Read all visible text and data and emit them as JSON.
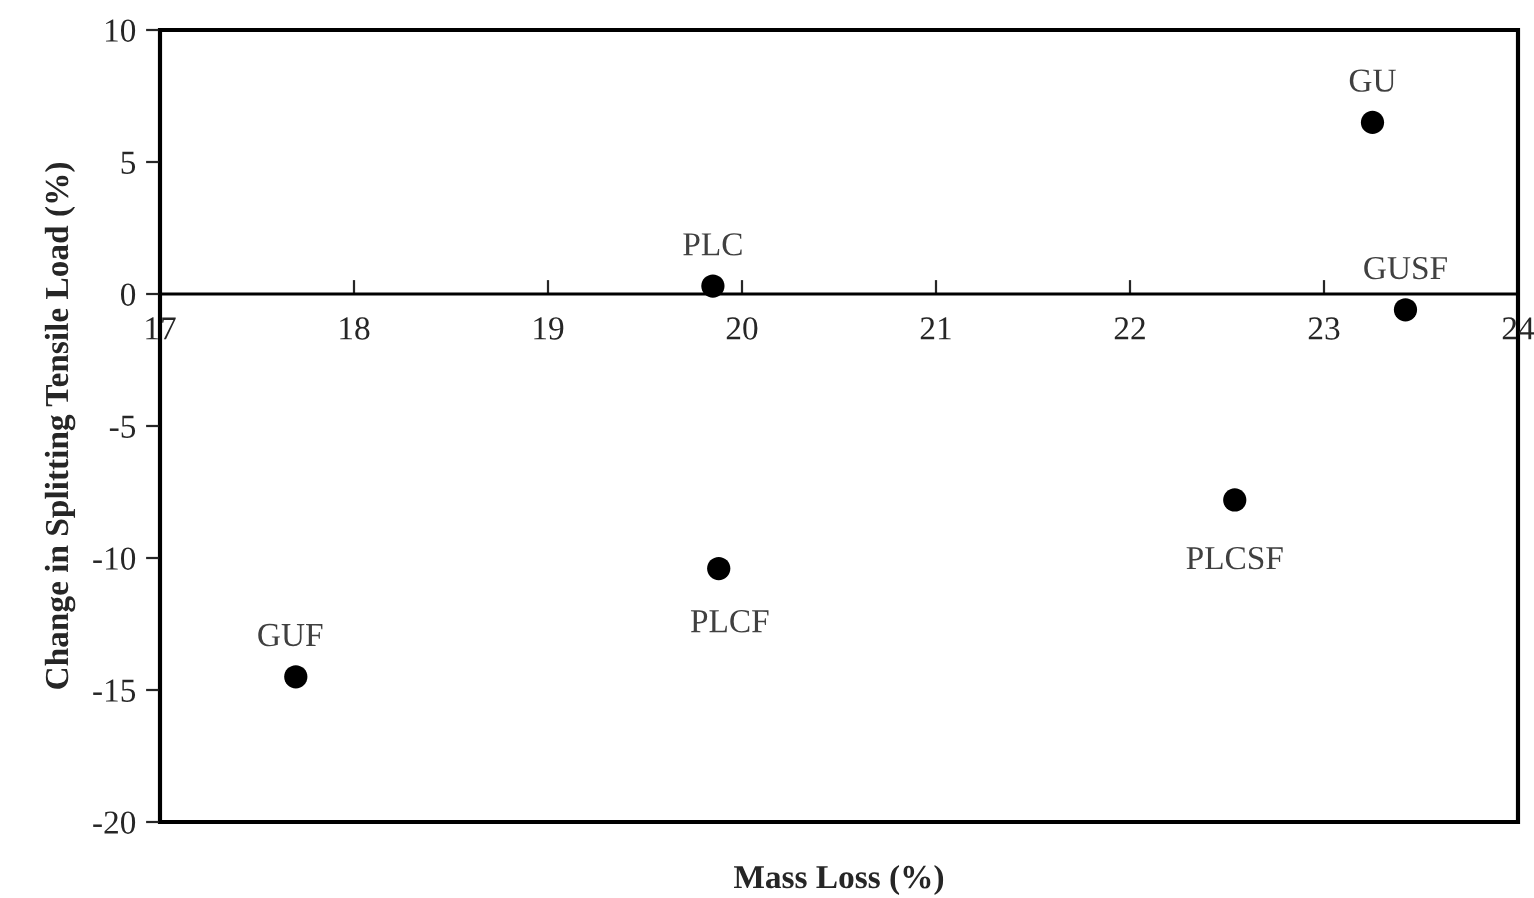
{
  "chart_data": {
    "type": "scatter",
    "xlabel": "Mass Loss (%)",
    "ylabel": "Change in Splitting Tensile Load (%)",
    "x": [
      19.85,
      23.25,
      23.42,
      17.7,
      19.88,
      22.54
    ],
    "series": [
      {
        "color": "#000000",
        "values": [
          0.3,
          6.5,
          -0.6,
          -14.5,
          -10.4,
          -7.8
        ]
      }
    ],
    "marker": "circle",
    "xlim": [
      17,
      24
    ],
    "xticks": [
      17,
      18,
      19,
      20,
      21,
      22,
      23,
      24
    ],
    "ylim": [
      -20,
      10
    ],
    "yticks": [
      -20,
      -15,
      -10,
      -5,
      0,
      5,
      10
    ],
    "grid": false,
    "legend": false,
    "annotations": [
      {
        "text": "PLC",
        "x": 19.85,
        "y": 0.3
      },
      {
        "text": "GU",
        "x": 23.25,
        "y": 6.5
      },
      {
        "text": "GUSF",
        "x": 23.42,
        "y": -0.6
      },
      {
        "text": "GUF",
        "x": 17.7,
        "y": -14.5
      },
      {
        "text": "PLCF",
        "x": 19.88,
        "y": -10.4
      },
      {
        "text": "PLCSF",
        "x": 22.54,
        "y": -7.8
      }
    ]
  }
}
